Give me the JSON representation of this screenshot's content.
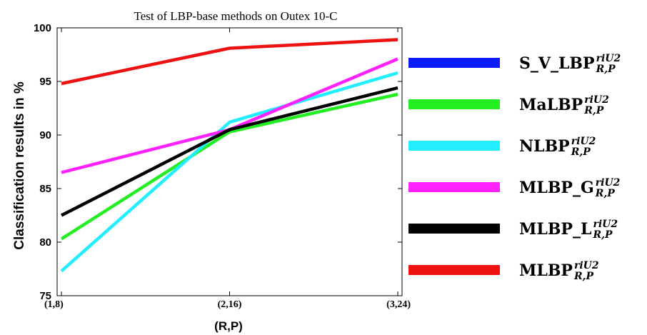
{
  "chart_data": {
    "type": "line",
    "title": "Test of LBP-base methods on Outex 10-C",
    "xlabel": "(R,P)",
    "ylabel": "Classification results in %",
    "categories": [
      "(1,8)",
      "(2,16)",
      "(3,24)"
    ],
    "ylim": [
      75,
      100
    ],
    "yticks": [
      75,
      80,
      85,
      90,
      95,
      100
    ],
    "grid": false,
    "legend_position": "right",
    "series": [
      {
        "key": "svlbp",
        "name": "S_V_LBP",
        "sup": "riU2",
        "sub": "R,P",
        "color": "#0a1aff",
        "values": [
          null,
          null,
          null
        ]
      },
      {
        "key": "malbp",
        "name": "MaLBP",
        "sup": "riU2",
        "sub": "R,P",
        "color": "#22ee22",
        "values": [
          80.3,
          90.3,
          93.8
        ]
      },
      {
        "key": "nlbp",
        "name": "NLBP",
        "sup": "riU2",
        "sub": "R,P",
        "color": "#22eeff",
        "values": [
          77.3,
          91.2,
          95.8
        ]
      },
      {
        "key": "mlbpg",
        "name": "MLBP_G",
        "sup": "riU2",
        "sub": "R,P",
        "color": "#ff22ff",
        "values": [
          86.5,
          90.5,
          97.1
        ]
      },
      {
        "key": "mlbpl",
        "name": "MLBP_L",
        "sup": "riU2",
        "sub": "R,P",
        "color": "#000000",
        "values": [
          82.5,
          90.5,
          94.4
        ]
      },
      {
        "key": "mlbp",
        "name": "MLBP",
        "sup": "riU2",
        "sub": "R,P",
        "color": "#ee1111",
        "values": [
          94.8,
          98.1,
          98.9
        ]
      }
    ]
  }
}
